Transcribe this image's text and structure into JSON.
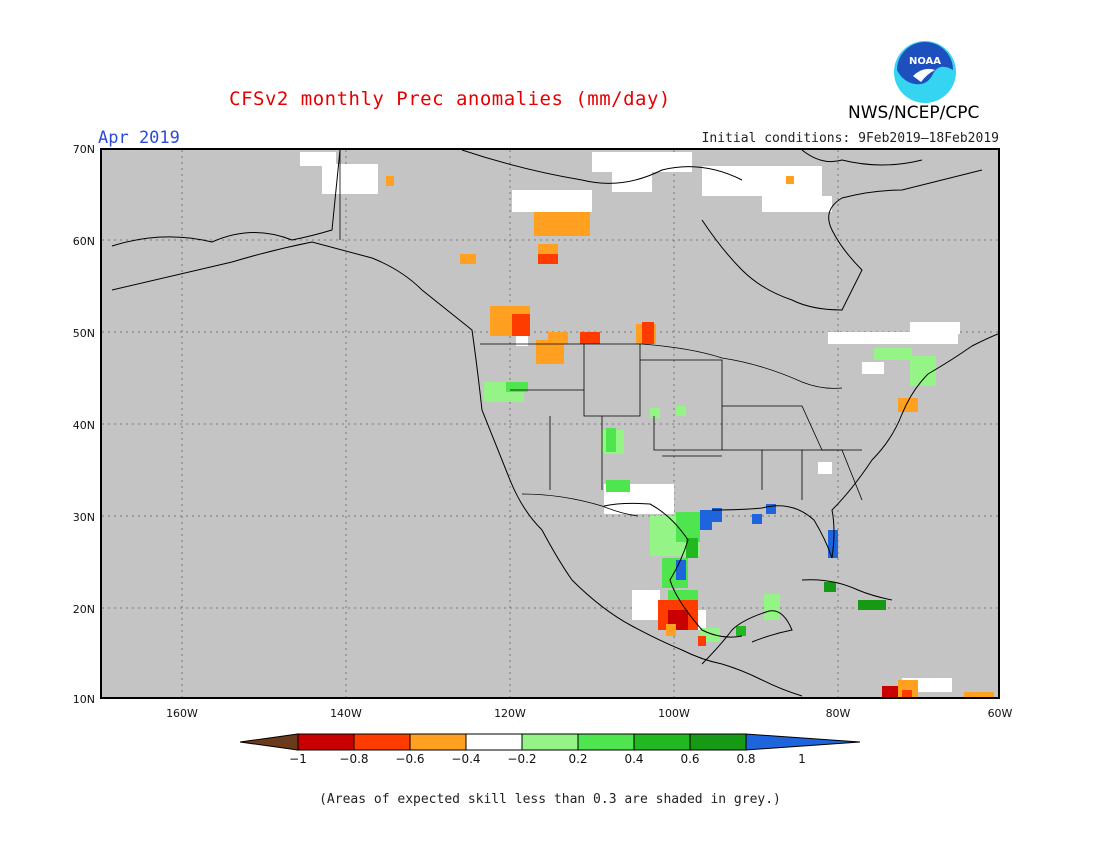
{
  "title": "CFSv2 monthly Prec anomalies (mm/day)",
  "month": "Apr 2019",
  "initial_conditions": "Initial conditions: 9Feb2019–18Feb2019",
  "agency": "NWS/NCEP/CPC",
  "logo": {
    "text": "NOAA",
    "colors": [
      "#1d4fbf",
      "#35d4f0"
    ]
  },
  "footnote": "(Areas of expected skill less than 0.3 are shaded in grey.)",
  "lat_labels": [
    "70N",
    "60N",
    "50N",
    "40N",
    "30N",
    "20N",
    "10N"
  ],
  "lon_labels": [
    "160W",
    "140W",
    "120W",
    "100W",
    "80W",
    "60W"
  ],
  "colorbar": {
    "labels": [
      "−1",
      "−0.8",
      "−0.6",
      "−0.4",
      "−0.2",
      "0.2",
      "0.4",
      "0.6",
      "0.8",
      "1"
    ],
    "colors": [
      "#6b3a1d",
      "#c80000",
      "#ff3c00",
      "#ffa020",
      "#ffffff",
      "#94f586",
      "#4ee54e",
      "#22b822",
      "#169a16",
      "#1e64dc"
    ]
  }
}
